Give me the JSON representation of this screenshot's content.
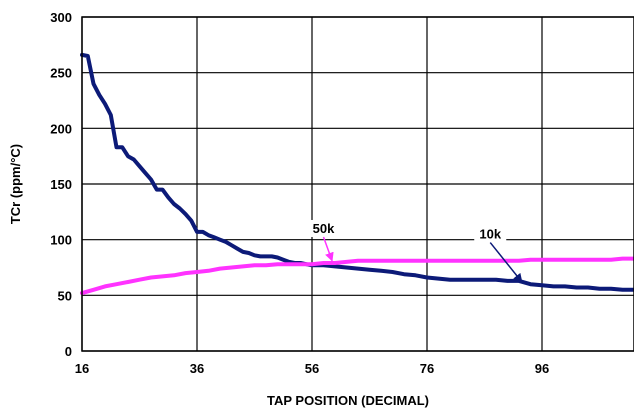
{
  "chart_data": {
    "type": "line",
    "xlabel": "TAP POSITION (DECIMAL)",
    "ylabel": "TCr (ppm/°C)",
    "xlim": [
      16,
      112
    ],
    "ylim": [
      0,
      300
    ],
    "xticks": [
      16,
      36,
      56,
      76,
      96
    ],
    "yticks": [
      0,
      50,
      100,
      150,
      200,
      250,
      300
    ],
    "grid": true,
    "series": [
      {
        "name": "10k",
        "color": "#0c1a78",
        "x": [
          16,
          17,
          18,
          19,
          20,
          21,
          22,
          23,
          24,
          25,
          26,
          27,
          28,
          29,
          30,
          31,
          32,
          33,
          34,
          35,
          36,
          37,
          38,
          39,
          40,
          41,
          42,
          43,
          44,
          45,
          46,
          47,
          48,
          49,
          50,
          51,
          52,
          53,
          54,
          55,
          56,
          58,
          60,
          62,
          64,
          66,
          68,
          70,
          72,
          74,
          76,
          78,
          80,
          82,
          84,
          86,
          88,
          90,
          92,
          94,
          96,
          98,
          100,
          102,
          104,
          106,
          108,
          110,
          112
        ],
        "values": [
          266,
          265,
          240,
          230,
          222,
          212,
          183,
          183,
          175,
          172,
          166,
          160,
          154,
          145,
          145,
          138,
          132,
          128,
          123,
          117,
          107,
          107,
          104,
          102,
          100,
          98,
          95,
          92,
          89,
          88,
          86,
          85,
          85,
          85,
          84,
          82,
          80,
          79,
          79,
          78,
          77,
          77,
          76,
          75,
          74,
          73,
          72,
          71,
          69,
          68,
          66,
          65,
          64,
          64,
          64,
          64,
          64,
          63,
          63,
          60,
          59,
          58,
          58,
          57,
          57,
          56,
          56,
          55,
          55
        ]
      },
      {
        "name": "50k",
        "color": "#ff33ff",
        "x": [
          16,
          18,
          20,
          22,
          24,
          26,
          28,
          30,
          32,
          34,
          36,
          38,
          40,
          42,
          44,
          46,
          48,
          50,
          52,
          54,
          56,
          58,
          60,
          62,
          64,
          66,
          68,
          70,
          72,
          74,
          76,
          78,
          80,
          82,
          84,
          86,
          88,
          90,
          92,
          94,
          96,
          98,
          100,
          102,
          104,
          106,
          108,
          110,
          112
        ],
        "values": [
          52,
          55,
          58,
          60,
          62,
          64,
          66,
          67,
          68,
          70,
          71,
          72,
          74,
          75,
          76,
          77,
          77,
          78,
          78,
          78,
          78,
          79,
          79,
          80,
          81,
          81,
          81,
          81,
          81,
          81,
          81,
          81,
          81,
          81,
          81,
          81,
          81,
          81,
          81,
          82,
          82,
          82,
          82,
          82,
          82,
          82,
          82,
          83,
          83
        ]
      }
    ],
    "annotations": [
      {
        "text": "50k",
        "x": 58,
        "y": 106,
        "arrow_to": [
          59.5,
          81
        ]
      },
      {
        "text": "10k",
        "x": 87,
        "y": 101,
        "arrow_to": [
          92.5,
          62
        ]
      }
    ]
  }
}
